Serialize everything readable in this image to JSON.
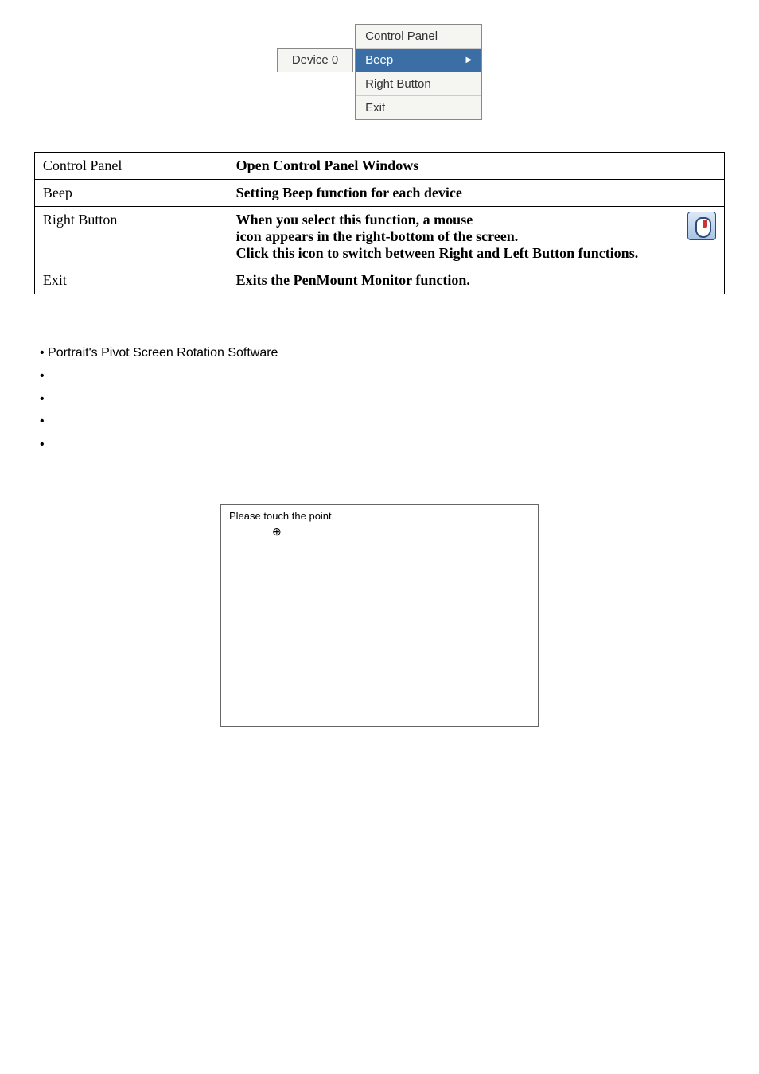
{
  "menu": {
    "device": "Device 0",
    "items": {
      "control_panel": "Control Panel",
      "beep": "Beep",
      "right_button": "Right Button",
      "exit": "Exit"
    }
  },
  "table": {
    "r1": {
      "label": "Control Panel",
      "value": "Open Control Panel Windows"
    },
    "r2": {
      "label": "Beep",
      "value": "Setting Beep function for each device"
    },
    "r3": {
      "label": "Right Button",
      "line1": "When you select this function, a mouse",
      "line2": "icon appears in the right-bottom of the screen.",
      "line3": "Click this icon to switch between Right and Left Button functions."
    },
    "r4": {
      "label": "Exit",
      "value": "Exits the PenMount Monitor function."
    }
  },
  "bullets": {
    "b1": "Portrait's Pivot Screen Rotation Software"
  },
  "touchbox": {
    "title": "Please touch the point",
    "crosshair": "⊕"
  }
}
